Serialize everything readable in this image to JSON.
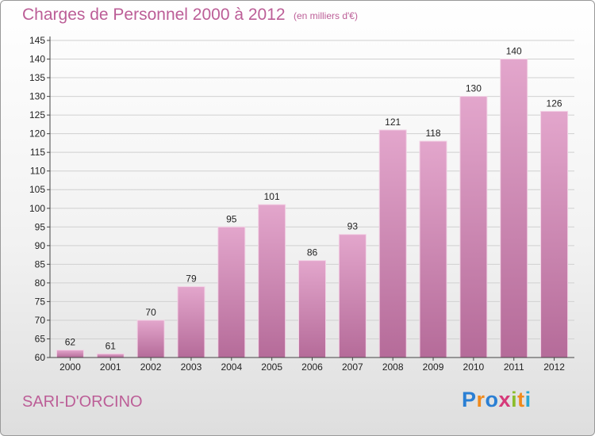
{
  "chart_data": {
    "type": "bar",
    "title": "Charges de Personnel 2000 à 2012",
    "subtitle": "(en milliers d'€)",
    "categories": [
      "2000",
      "2001",
      "2002",
      "2003",
      "2004",
      "2005",
      "2006",
      "2007",
      "2008",
      "2009",
      "2010",
      "2011",
      "2012"
    ],
    "values": [
      62,
      61,
      70,
      79,
      95,
      101,
      86,
      93,
      121,
      118,
      130,
      140,
      126
    ],
    "ylim": [
      60,
      145
    ],
    "yticks": [
      60,
      65,
      70,
      75,
      80,
      85,
      90,
      95,
      100,
      105,
      110,
      115,
      120,
      125,
      130,
      135,
      140,
      145
    ],
    "grid": true,
    "bar_color": "#c97aaa"
  },
  "location": "SARI-D'ORCINO",
  "logo": {
    "letters": [
      "P",
      "r",
      "o",
      "x",
      "i",
      "t",
      "i"
    ],
    "colors": [
      "#2a7fd4",
      "#f08a1c",
      "#2a7fd4",
      "#d63a7a",
      "#8bbd2b",
      "#f08a1c",
      "#2aa7d4"
    ]
  }
}
